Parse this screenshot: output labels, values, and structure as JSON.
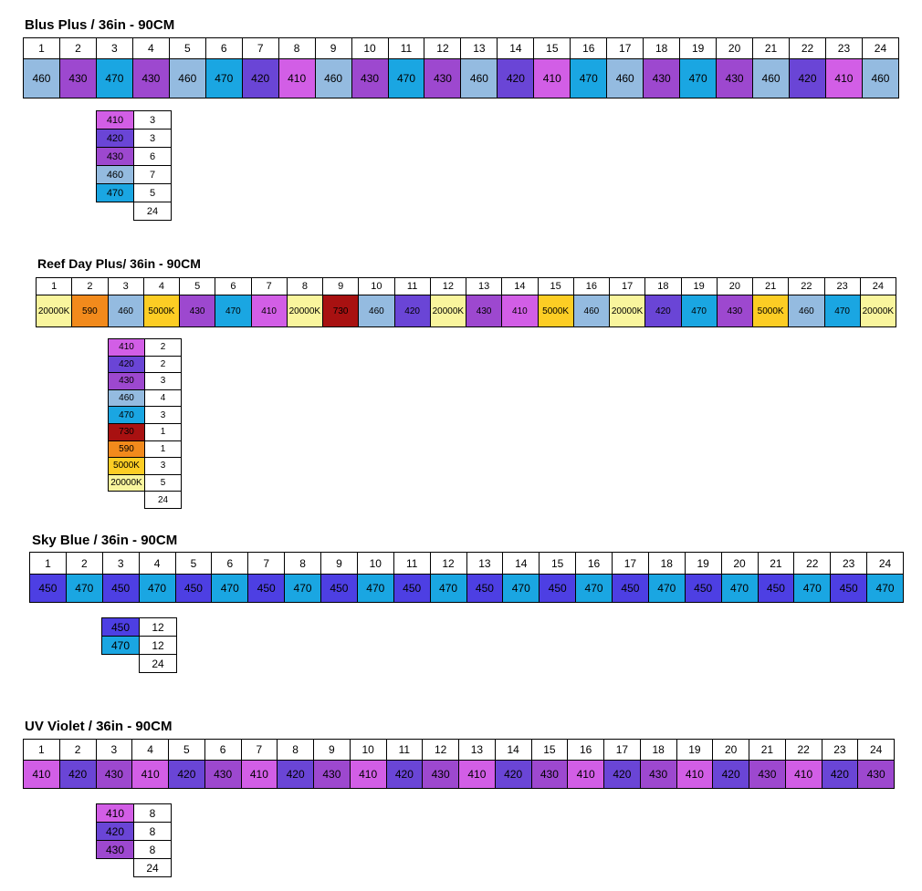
{
  "colors": {
    "410": "#d25ee6",
    "420": "#6a45d6",
    "430": "#9d48cf",
    "450": "#4d3fe3",
    "460": "#94bbe0",
    "470": "#1aa6e2",
    "590": "#f28a1c",
    "730": "#a81111",
    "5000K": "#fccd24",
    "20000K": "#f9f59d"
  },
  "sections": [
    {
      "title": "Blus Plus / 36in - 90CM",
      "numbers": [
        "1",
        "2",
        "3",
        "4",
        "5",
        "6",
        "7",
        "8",
        "9",
        "10",
        "11",
        "12",
        "13",
        "14",
        "15",
        "16",
        "17",
        "18",
        "19",
        "20",
        "21",
        "22",
        "23",
        "24"
      ],
      "values": [
        "460",
        "430",
        "470",
        "430",
        "460",
        "470",
        "420",
        "410",
        "460",
        "430",
        "470",
        "430",
        "460",
        "420",
        "410",
        "470",
        "460",
        "430",
        "470",
        "430",
        "460",
        "420",
        "410",
        "460"
      ],
      "summary": [
        {
          "label": "410",
          "count": "3"
        },
        {
          "label": "420",
          "count": "3"
        },
        {
          "label": "430",
          "count": "6"
        },
        {
          "label": "460",
          "count": "7"
        },
        {
          "label": "470",
          "count": "5"
        }
      ],
      "total": "24"
    },
    {
      "title": "Reef Day Plus/ 36in - 90CM",
      "numbers": [
        "1",
        "2",
        "3",
        "4",
        "5",
        "6",
        "7",
        "8",
        "9",
        "10",
        "11",
        "12",
        "13",
        "14",
        "15",
        "16",
        "17",
        "18",
        "19",
        "20",
        "21",
        "22",
        "23",
        "24"
      ],
      "values": [
        "20000K",
        "590",
        "460",
        "5000K",
        "430",
        "470",
        "410",
        "20000K",
        "730",
        "460",
        "420",
        "20000K",
        "430",
        "410",
        "5000K",
        "460",
        "20000K",
        "420",
        "470",
        "430",
        "5000K",
        "460",
        "470",
        "20000K"
      ],
      "summary": [
        {
          "label": "410",
          "count": "2"
        },
        {
          "label": "420",
          "count": "2"
        },
        {
          "label": "430",
          "count": "3"
        },
        {
          "label": "460",
          "count": "4"
        },
        {
          "label": "470",
          "count": "3"
        },
        {
          "label": "730",
          "count": "1"
        },
        {
          "label": "590",
          "count": "1"
        },
        {
          "label": "5000K",
          "count": "3"
        },
        {
          "label": "20000K",
          "count": "5"
        }
      ],
      "total": "24"
    },
    {
      "title": "Sky Blue / 36in - 90CM",
      "numbers": [
        "1",
        "2",
        "3",
        "4",
        "5",
        "6",
        "7",
        "8",
        "9",
        "10",
        "11",
        "12",
        "13",
        "14",
        "15",
        "16",
        "17",
        "18",
        "19",
        "20",
        "21",
        "22",
        "23",
        "24"
      ],
      "values": [
        "450",
        "470",
        "450",
        "470",
        "450",
        "470",
        "450",
        "470",
        "450",
        "470",
        "450",
        "470",
        "450",
        "470",
        "450",
        "470",
        "450",
        "470",
        "450",
        "470",
        "450",
        "470",
        "450",
        "470"
      ],
      "summary": [
        {
          "label": "450",
          "count": "12"
        },
        {
          "label": "470",
          "count": "12"
        }
      ],
      "total": "24"
    },
    {
      "title": "UV Violet / 36in - 90CM",
      "numbers": [
        "1",
        "2",
        "3",
        "4",
        "5",
        "6",
        "7",
        "8",
        "9",
        "10",
        "11",
        "12",
        "13",
        "14",
        "15",
        "16",
        "17",
        "18",
        "19",
        "20",
        "21",
        "22",
        "23",
        "24"
      ],
      "values": [
        "410",
        "420",
        "430",
        "410",
        "420",
        "430",
        "410",
        "420",
        "430",
        "410",
        "420",
        "430",
        "410",
        "420",
        "430",
        "410",
        "420",
        "430",
        "410",
        "420",
        "430",
        "410",
        "420",
        "430"
      ],
      "summary": [
        {
          "label": "410",
          "count": "8"
        },
        {
          "label": "420",
          "count": "8"
        },
        {
          "label": "430",
          "count": "8"
        }
      ],
      "total": "24"
    }
  ]
}
